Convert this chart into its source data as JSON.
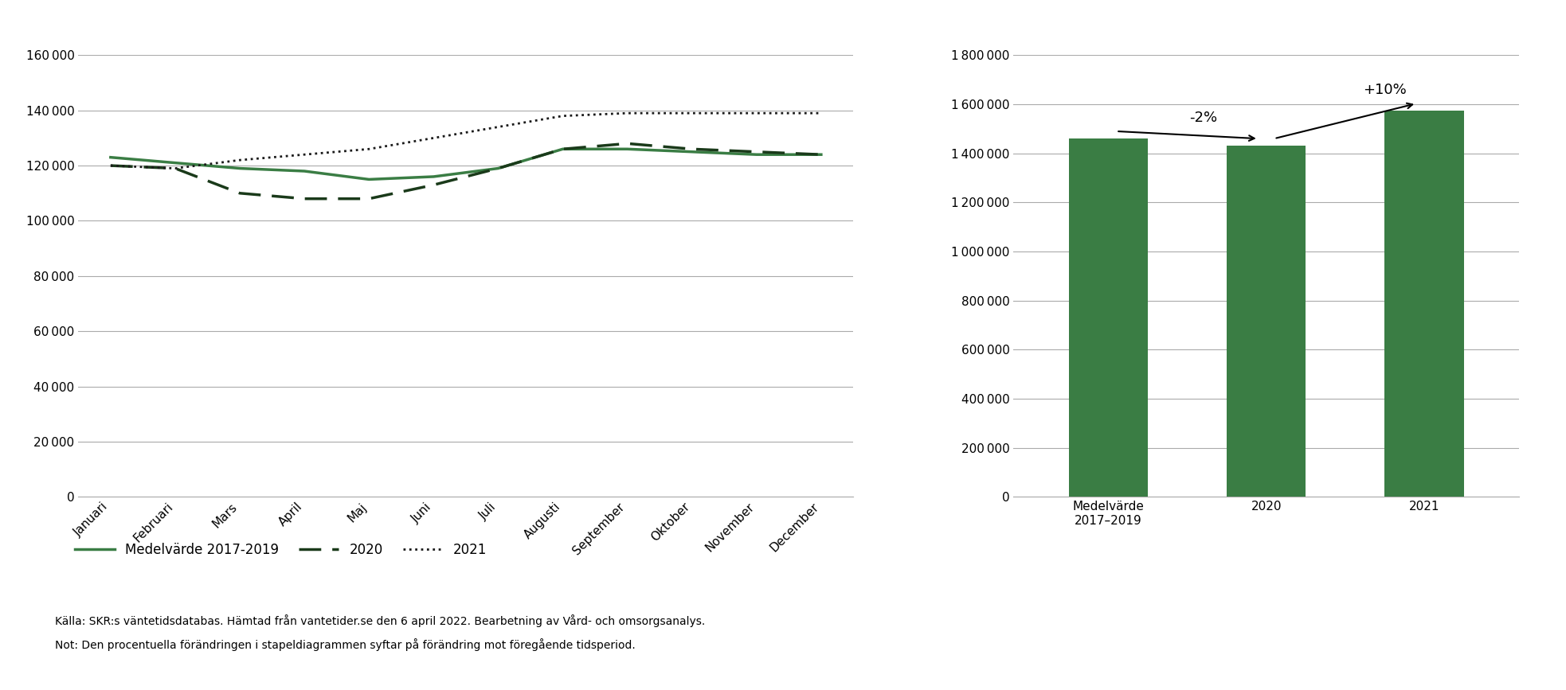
{
  "months": [
    "Januari",
    "Februari",
    "Mars",
    "April",
    "Maj",
    "Juni",
    "Juli",
    "Augusti",
    "September",
    "Oktober",
    "November",
    "December"
  ],
  "medelvarde_2017_2019": [
    123000,
    121000,
    119000,
    118000,
    115000,
    116000,
    119000,
    126000,
    126000,
    125000,
    124000,
    124000
  ],
  "series_2020": [
    120000,
    119000,
    110000,
    108000,
    108000,
    113000,
    119000,
    126000,
    128000,
    126000,
    125000,
    124000
  ],
  "series_2021": [
    120000,
    119000,
    122000,
    124000,
    126000,
    130000,
    134000,
    138000,
    139000,
    139000,
    139000,
    139000
  ],
  "bar_categories": [
    "Medelvärde\n2017–2019",
    "2020",
    "2021"
  ],
  "bar_values": [
    1460000,
    1430000,
    1573000
  ],
  "bar_color": "#3a7d44",
  "line_color_medel": "#3a7d44",
  "line_color_2020": "#1a3a1a",
  "line_color_2021": "#1a1a1a",
  "arrow1_label": "-2%",
  "arrow2_label": "+10%",
  "source_text": "Källa: SKR:s väntetidsdatabas. Hämtad från vantetider.se den 6 april 2022. Bearbetning av Vård- och omsorgsanalys.",
  "note_text": "Not: Den procentuella förändringen i stapeldiagrammen syftar på förändring mot föregående tidsperiod.",
  "legend_medel": "Medelvärde 2017-2019",
  "legend_2020": "2020",
  "legend_2021": "2021",
  "left_ylim": [
    0,
    160000
  ],
  "left_yticks": [
    0,
    20000,
    40000,
    60000,
    80000,
    100000,
    120000,
    140000,
    160000
  ],
  "right_ylim": [
    0,
    1800000
  ],
  "right_yticks": [
    0,
    200000,
    400000,
    600000,
    800000,
    1000000,
    1200000,
    1400000,
    1600000,
    1800000
  ],
  "background_color": "#ffffff"
}
